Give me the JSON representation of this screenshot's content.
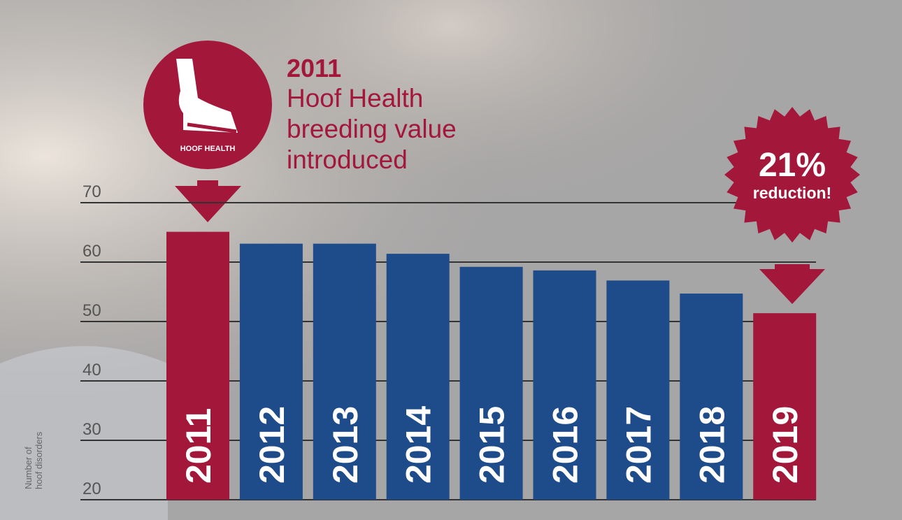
{
  "chart_data": {
    "type": "bar",
    "annotation_year": "2011",
    "annotation_lines": [
      "Hoof Health",
      "breeding value",
      "introduced"
    ],
    "badge_label": "HOOF HEALTH",
    "burst_value": "21%",
    "burst_text": "reduction!",
    "ylabel_lines": [
      "Number of",
      "hoof disorders"
    ],
    "categories": [
      "2011",
      "2012",
      "2013",
      "2014",
      "2015",
      "2016",
      "2017",
      "2018",
      "2019"
    ],
    "values": [
      65.1,
      63.1,
      63.1,
      61.4,
      59.2,
      58.6,
      56.9,
      54.7,
      51.4
    ],
    "colors": [
      "#a3173a",
      "#1e4b8a",
      "#1e4b8a",
      "#1e4b8a",
      "#1e4b8a",
      "#1e4b8a",
      "#1e4b8a",
      "#1e4b8a",
      "#a3173a"
    ],
    "ylim": [
      20,
      70
    ],
    "yticks": [
      20,
      30,
      40,
      50,
      60,
      70
    ],
    "grid": true
  }
}
